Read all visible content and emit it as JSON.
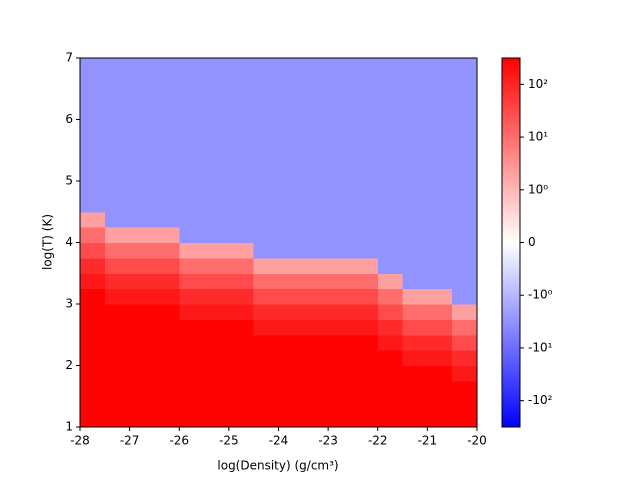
{
  "chart_data": {
    "type": "heatmap",
    "xlabel": "log(Density) (g/cm³)",
    "ylabel": "log(T) (K)",
    "xlim": [
      -28,
      -20
    ],
    "ylim": [
      1,
      7
    ],
    "xticks": [
      -28,
      -27,
      -26,
      -25,
      -24,
      -23,
      -22,
      -21,
      -20
    ],
    "yticks": [
      1,
      2,
      3,
      4,
      5,
      6,
      7
    ],
    "xbins": [
      -28,
      -27.5,
      -27,
      -26.5,
      -26,
      -25.5,
      -25,
      -24.5,
      -24,
      -23.5,
      -23,
      -22.5,
      -22,
      -21.5,
      -21,
      -20.5,
      -20
    ],
    "ybins": [
      1,
      1.25,
      1.5,
      1.75,
      2,
      2.25,
      2.5,
      2.75,
      3,
      3.25,
      3.5,
      3.75,
      4,
      4.25,
      4.5,
      4.75,
      5,
      5.25,
      5.5,
      5.75,
      6,
      6.25,
      6.5,
      6.75,
      7
    ],
    "z": [
      [
        300,
        300,
        300,
        300,
        300,
        300,
        300,
        300,
        300,
        300,
        300,
        300,
        300,
        300,
        300,
        300
      ],
      [
        300,
        300,
        300,
        300,
        300,
        300,
        300,
        300,
        300,
        300,
        300,
        300,
        300,
        300,
        300,
        300
      ],
      [
        300,
        300,
        300,
        300,
        300,
        300,
        300,
        300,
        300,
        300,
        300,
        300,
        300,
        300,
        300,
        300
      ],
      [
        300,
        300,
        300,
        300,
        300,
        300,
        300,
        300,
        300,
        300,
        300,
        300,
        300,
        300,
        300,
        150
      ],
      [
        300,
        300,
        300,
        300,
        300,
        300,
        300,
        300,
        300,
        300,
        300,
        300,
        300,
        150,
        150,
        80
      ],
      [
        300,
        300,
        300,
        300,
        300,
        300,
        300,
        300,
        300,
        300,
        300,
        300,
        150,
        80,
        80,
        30
      ],
      [
        300,
        300,
        300,
        300,
        300,
        300,
        300,
        150,
        150,
        150,
        150,
        150,
        80,
        30,
        30,
        10
      ],
      [
        300,
        300,
        300,
        300,
        150,
        150,
        150,
        80,
        80,
        80,
        80,
        80,
        30,
        10,
        10,
        2
      ],
      [
        300,
        150,
        150,
        150,
        80,
        80,
        80,
        30,
        30,
        30,
        30,
        30,
        10,
        2,
        2,
        -3
      ],
      [
        150,
        80,
        80,
        80,
        30,
        30,
        30,
        10,
        10,
        10,
        10,
        10,
        2,
        -3,
        -3,
        -3
      ],
      [
        80,
        30,
        30,
        30,
        10,
        10,
        10,
        2,
        2,
        2,
        2,
        2,
        -3,
        -3,
        -3,
        -3
      ],
      [
        30,
        10,
        10,
        10,
        2,
        2,
        2,
        -3,
        -3,
        -3,
        -3,
        -3,
        -3,
        -3,
        -3,
        -3
      ],
      [
        10,
        2,
        2,
        2,
        -3,
        -3,
        -3,
        -3,
        -3,
        -3,
        -3,
        -3,
        -3,
        -3,
        -3,
        -3
      ],
      [
        2,
        -3,
        -3,
        -3,
        -3,
        -3,
        -3,
        -3,
        -3,
        -3,
        -3,
        -3,
        -3,
        -3,
        -3,
        -3
      ],
      [
        -3,
        -3,
        -3,
        -3,
        -3,
        -3,
        -3,
        -3,
        -3,
        -3,
        -3,
        -3,
        -3,
        -3,
        -3,
        -3
      ],
      [
        -3,
        -3,
        -3,
        -3,
        -3,
        -3,
        -3,
        -3,
        -3,
        -3,
        -3,
        -3,
        -3,
        -3,
        -3,
        -3
      ],
      [
        -3,
        -3,
        -3,
        -3,
        -3,
        -3,
        -3,
        -3,
        -3,
        -3,
        -3,
        -3,
        -3,
        -3,
        -3,
        -3
      ],
      [
        -3,
        -3,
        -3,
        -3,
        -3,
        -3,
        -3,
        -3,
        -3,
        -3,
        -3,
        -3,
        -3,
        -3,
        -3,
        -3
      ],
      [
        -3,
        -3,
        -3,
        -3,
        -3,
        -3,
        -3,
        -3,
        -3,
        -3,
        -3,
        -3,
        -3,
        -3,
        -3,
        -3
      ],
      [
        -3,
        -3,
        -3,
        -3,
        -3,
        -3,
        -3,
        -3,
        -3,
        -3,
        -3,
        -3,
        -3,
        -3,
        -3,
        -3
      ],
      [
        -3,
        -3,
        -3,
        -3,
        -3,
        -3,
        -3,
        -3,
        -3,
        -3,
        -3,
        -3,
        -3,
        -3,
        -3,
        -3
      ],
      [
        -3,
        -3,
        -3,
        -3,
        -3,
        -3,
        -3,
        -3,
        -3,
        -3,
        -3,
        -3,
        -3,
        -3,
        -3,
        -3
      ],
      [
        -3,
        -3,
        -3,
        -3,
        -3,
        -3,
        -3,
        -3,
        -3,
        -3,
        -3,
        -3,
        -3,
        -3,
        -3,
        -3
      ],
      [
        -3,
        -3,
        -3,
        -3,
        -3,
        -3,
        -3,
        -3,
        -3,
        -3,
        -3,
        -3,
        -3,
        -3,
        -3,
        -3
      ]
    ],
    "cmap": "bwr",
    "norm": "symlog",
    "linthresh": 1,
    "clim": [
      -316,
      316
    ],
    "cticks": [
      {
        "value": -100,
        "label": "-10²"
      },
      {
        "value": -10,
        "label": "-10¹"
      },
      {
        "value": -1,
        "label": "-10⁰"
      },
      {
        "value": 0,
        "label": "0"
      },
      {
        "value": 1,
        "label": "10⁰"
      },
      {
        "value": 10,
        "label": "10¹"
      },
      {
        "value": 100,
        "label": "10²"
      }
    ]
  }
}
